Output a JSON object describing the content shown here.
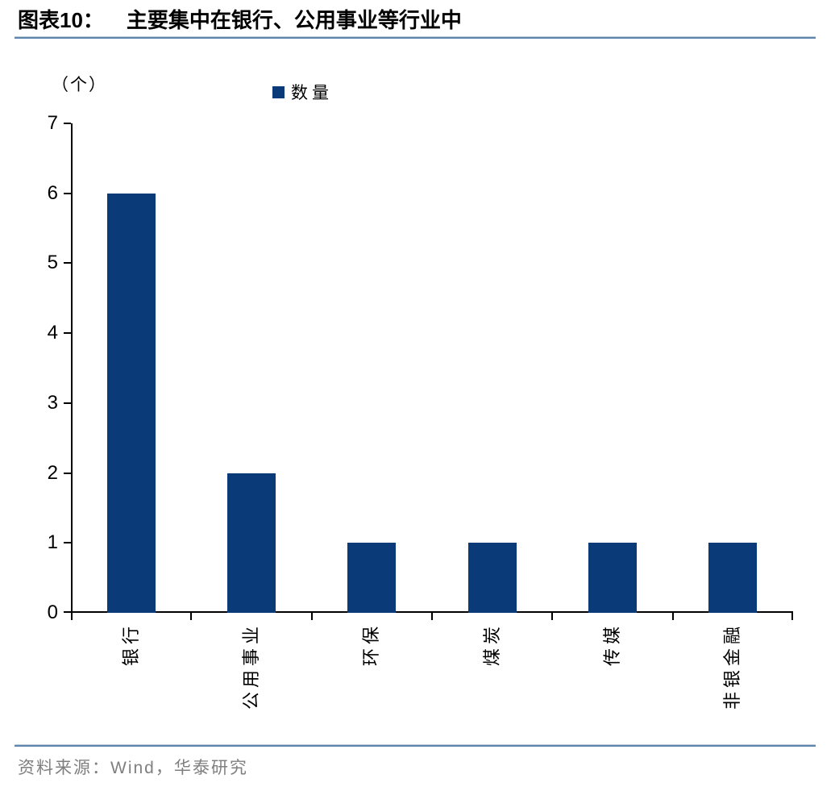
{
  "header": {
    "label": "图表10：",
    "title": "主要集中在银行、公用事业等行业中"
  },
  "footer": {
    "source": "资料来源：Wind，华泰研究"
  },
  "colors": {
    "bar": "#0a3a78",
    "rule": "#5e85ad",
    "axis": "#000000",
    "source_text": "#7f7f7f"
  },
  "chart_data": {
    "type": "bar",
    "title": "主要集中在银行、公用事业等行业中",
    "categories": [
      "银行",
      "公用事业",
      "环保",
      "煤炭",
      "传媒",
      "非银金融"
    ],
    "values": [
      6,
      2,
      1,
      1,
      1,
      1
    ],
    "series": [
      {
        "name": "数量",
        "values": [
          6,
          2,
          1,
          1,
          1,
          1
        ]
      }
    ],
    "xlabel": "",
    "ylabel": "（个）",
    "ylim": [
      0,
      7
    ],
    "ytick_step": 1,
    "yticks": [
      0,
      1,
      2,
      3,
      4,
      5,
      6,
      7
    ],
    "grid": false,
    "legend_position": "top",
    "x_label_rotation": -90
  }
}
